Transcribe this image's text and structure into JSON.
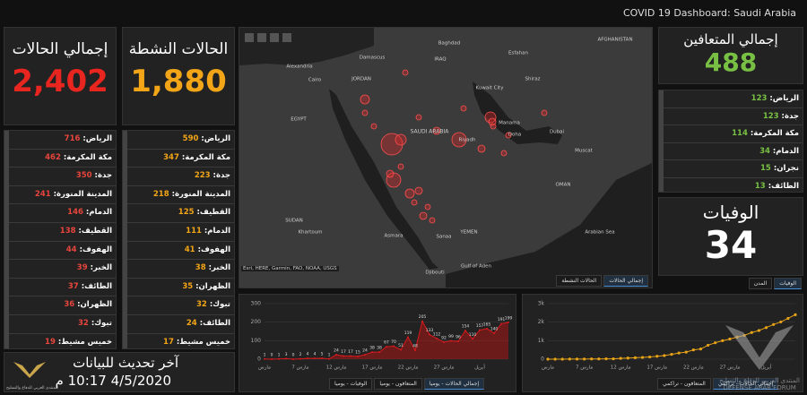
{
  "header": {
    "title": "COVID 19 Dashboard: Saudi Arabia"
  },
  "totals": [
    {
      "label": "إجمالي الحالات",
      "value": "2,402",
      "color": "#e8261f"
    },
    {
      "label": "الحالات النشطة",
      "value": "1,880",
      "color": "#f2a516"
    },
    {
      "label": "إجمالي المتعافين",
      "value": "488",
      "color": "#78c043"
    },
    {
      "label": "الوفيات",
      "value": "34",
      "color": "#ffffff"
    }
  ],
  "lists": [
    {
      "color": "#e8453c",
      "rows": [
        {
          "city": "الرياض:",
          "count": "716"
        },
        {
          "city": "مكة المكرمة:",
          "count": "462"
        },
        {
          "city": "جدة:",
          "count": "350"
        },
        {
          "city": "المدينة المنورة:",
          "count": "241"
        },
        {
          "city": "الدمام:",
          "count": "146"
        },
        {
          "city": "القطيف:",
          "count": "138"
        },
        {
          "city": "الهفوف:",
          "count": "44"
        },
        {
          "city": "الخبر:",
          "count": "39"
        },
        {
          "city": "الطائف:",
          "count": "37"
        },
        {
          "city": "الظهران:",
          "count": "36"
        },
        {
          "city": "تبوك:",
          "count": "32"
        },
        {
          "city": "خميس مشيط:",
          "count": "19"
        }
      ]
    },
    {
      "color": "#f2a516",
      "rows": [
        {
          "city": "الرياض:",
          "count": "590"
        },
        {
          "city": "مكة المكرمة:",
          "count": "347"
        },
        {
          "city": "جدة:",
          "count": "223"
        },
        {
          "city": "المدينة المنورة:",
          "count": "218"
        },
        {
          "city": "القطيف:",
          "count": "125"
        },
        {
          "city": "الدمام:",
          "count": "111"
        },
        {
          "city": "الهفوف:",
          "count": "41"
        },
        {
          "city": "الخبر:",
          "count": "38"
        },
        {
          "city": "الظهران:",
          "count": "35"
        },
        {
          "city": "تبوك:",
          "count": "32"
        },
        {
          "city": "الطائف:",
          "count": "24"
        },
        {
          "city": "خميس مشيط:",
          "count": "17"
        }
      ]
    },
    {
      "color": "#78c043",
      "rows": [
        {
          "city": "الرياض:",
          "count": "123"
        },
        {
          "city": "جدة:",
          "count": "123"
        },
        {
          "city": "مكة المكرمة:",
          "count": "114"
        },
        {
          "city": "الدمام:",
          "count": "34"
        },
        {
          "city": "نجران:",
          "count": "15"
        },
        {
          "city": "الطائف:",
          "count": "13"
        }
      ]
    }
  ],
  "map": {
    "labels": [
      "Alexandria",
      "Cairo",
      "JORDAN",
      "Damascus",
      "Baghdad",
      "IRAQ",
      "Esfahan",
      "AFGHANISTAN",
      "Kuwait City",
      "Shiraz",
      "Manama",
      "Doha",
      "Dubai",
      "Muscat",
      "OMAN",
      "EGYPT",
      "SAUDI ARABIA",
      "Riyadh",
      "SUDAN",
      "Khartoum",
      "Asmara",
      "Sanaa",
      "YEMEN",
      "Gulf of Aden",
      "Arabian Sea",
      "Djibouti"
    ],
    "attribution": "Esri, HERE, Garmin, FAO, NOAA, USGS",
    "tabs": [
      "إجمالي الحالات",
      "الحالات النشطة"
    ]
  },
  "deaths_tabs": [
    "الوفيات",
    "المدن"
  ],
  "daily_tabs": [
    "إجمالي الحالات - يوميا",
    "المتعافون - يوميا",
    "الوفيات - يوميا"
  ],
  "cumulative_tabs": [
    "إجمالي الحالات - تراكمي",
    "المتعافون - تراكمي"
  ],
  "last_update": {
    "title": "آخر تحديث للبيانات",
    "time": "4/5/2020 10:17 م"
  },
  "watermark": {
    "arabic": "المنتدى العربي للدفاع والتسليح",
    "english": "DEFENSE ARAB FORUM"
  },
  "chart_data": [
    {
      "type": "area",
      "color": "#d7191c",
      "categories": [
        "مارس",
        null,
        null,
        null,
        null,
        "مارس 7",
        null,
        null,
        null,
        null,
        "مارس 12",
        null,
        null,
        null,
        null,
        "مارس 17",
        null,
        null,
        null,
        null,
        "مارس 22",
        null,
        null,
        null,
        null,
        "مارس 27",
        null,
        null,
        null,
        null,
        "أبريل",
        null,
        null,
        null,
        null
      ],
      "values": [
        1,
        0,
        1,
        3,
        0,
        2,
        4,
        4,
        5,
        1,
        24,
        17,
        17,
        15,
        24,
        38,
        38,
        67,
        70,
        51,
        119,
        48,
        205,
        133,
        112,
        92,
        99,
        96,
        154,
        110,
        157,
        165,
        140,
        191,
        199
      ],
      "ylim": [
        0,
        300
      ],
      "yticks": [
        0,
        100,
        200,
        300
      ],
      "grid": true
    },
    {
      "type": "line",
      "color": "#e8a317",
      "categories": [
        "مارس",
        null,
        null,
        null,
        null,
        "مارس 7",
        null,
        null,
        null,
        null,
        "مارس 12",
        null,
        null,
        null,
        null,
        "مارس 17",
        null,
        null,
        null,
        null,
        "مارس 22",
        null,
        null,
        null,
        null,
        "مارس 27",
        null,
        null,
        null,
        null,
        "أبريل",
        null,
        null,
        null,
        null
      ],
      "values": [
        1,
        1,
        2,
        5,
        5,
        7,
        11,
        15,
        20,
        21,
        45,
        62,
        79,
        94,
        118,
        156,
        194,
        261,
        331,
        382,
        501,
        549,
        754,
        887,
        999,
        1091,
        1190,
        1286,
        1440,
        1550,
        1707,
        1872,
        2012,
        2203,
        2402
      ],
      "ylim": [
        0,
        3000
      ],
      "yticks": [
        0,
        {
          "value": 1000,
          "label": "1k"
        },
        {
          "value": 2000,
          "label": "2k"
        },
        {
          "value": 3000,
          "label": "3k"
        }
      ],
      "grid": true
    }
  ]
}
